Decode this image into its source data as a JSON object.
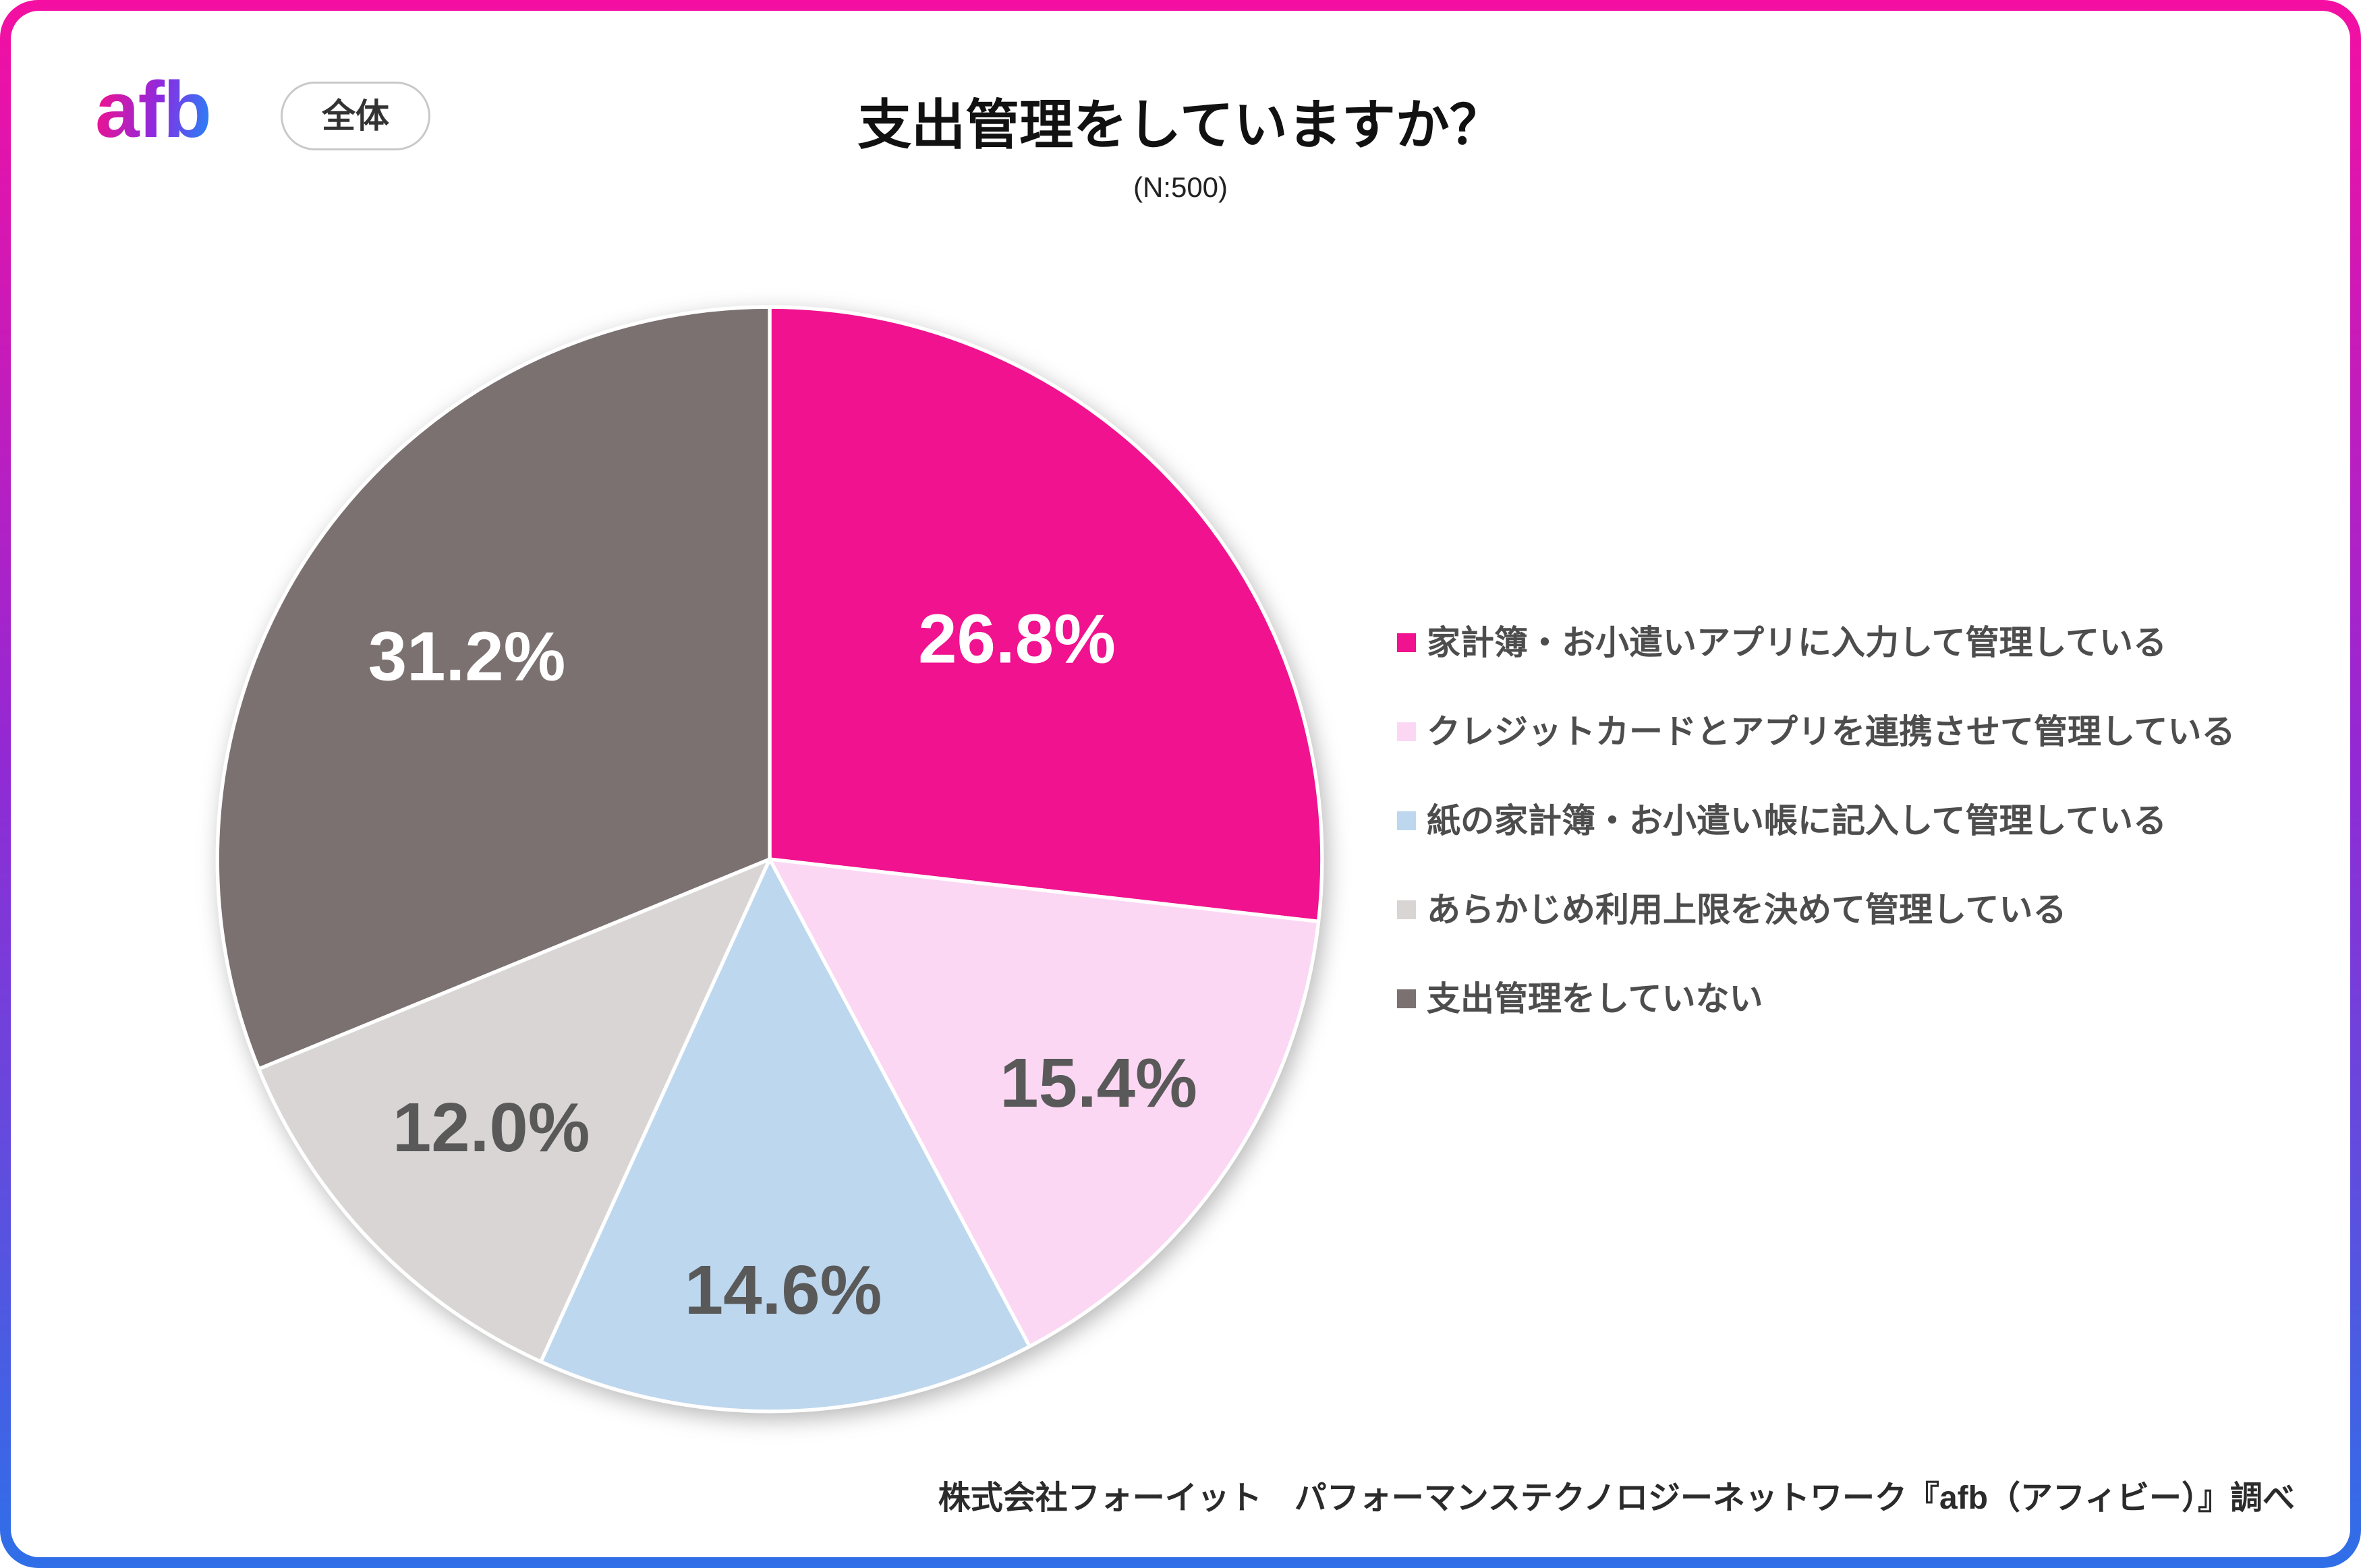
{
  "header": {
    "logo_text": "afb",
    "scope_label": "全体"
  },
  "chart_data": {
    "type": "pie",
    "title": "支出管理をしていますか？",
    "subtitle": "(N:500)",
    "sample_size": "N:500",
    "categories": [
      "家計簿・お小遣いアプリに入力して管理している",
      "クレジットカードとアプリを連携させて管理している",
      "紙の家計簿・お小遣い帳に記入して管理している",
      "あらかじめ利用上限を決めて管理している",
      "支出管理をしていない"
    ],
    "values": [
      26.8,
      15.4,
      14.6,
      12.0,
      31.2
    ],
    "value_labels": [
      "26.8%",
      "15.4%",
      "14.6%",
      "12.0%",
      "31.2%"
    ],
    "colors": [
      "#F0128E",
      "#FBD7F3",
      "#BDD7EE",
      "#D9D5D5",
      "#7A7170"
    ],
    "label_colors": [
      "#FFFFFF",
      "#595959",
      "#595959",
      "#595959",
      "#FFFFFF"
    ],
    "label_radius": [
      0.6,
      0.72,
      0.78,
      0.7,
      0.66
    ],
    "start_angle": 0,
    "direction": "clockwise",
    "legend_position": "right",
    "slice_border_color": "#FFFFFF"
  },
  "theme": {
    "frame_gradient_top": "#F40FA2",
    "frame_gradient_mid": "#9329D4",
    "frame_gradient_bottom": "#2F6FE8",
    "brand_pink": "#F0128E",
    "brand_purple": "#8A2BE2",
    "brand_blue": "#2D7DF6"
  },
  "footer": {
    "credit": "株式会社フォーイット　パフォーマンステクノロジーネットワーク『afb（アフィビー）』調べ"
  }
}
